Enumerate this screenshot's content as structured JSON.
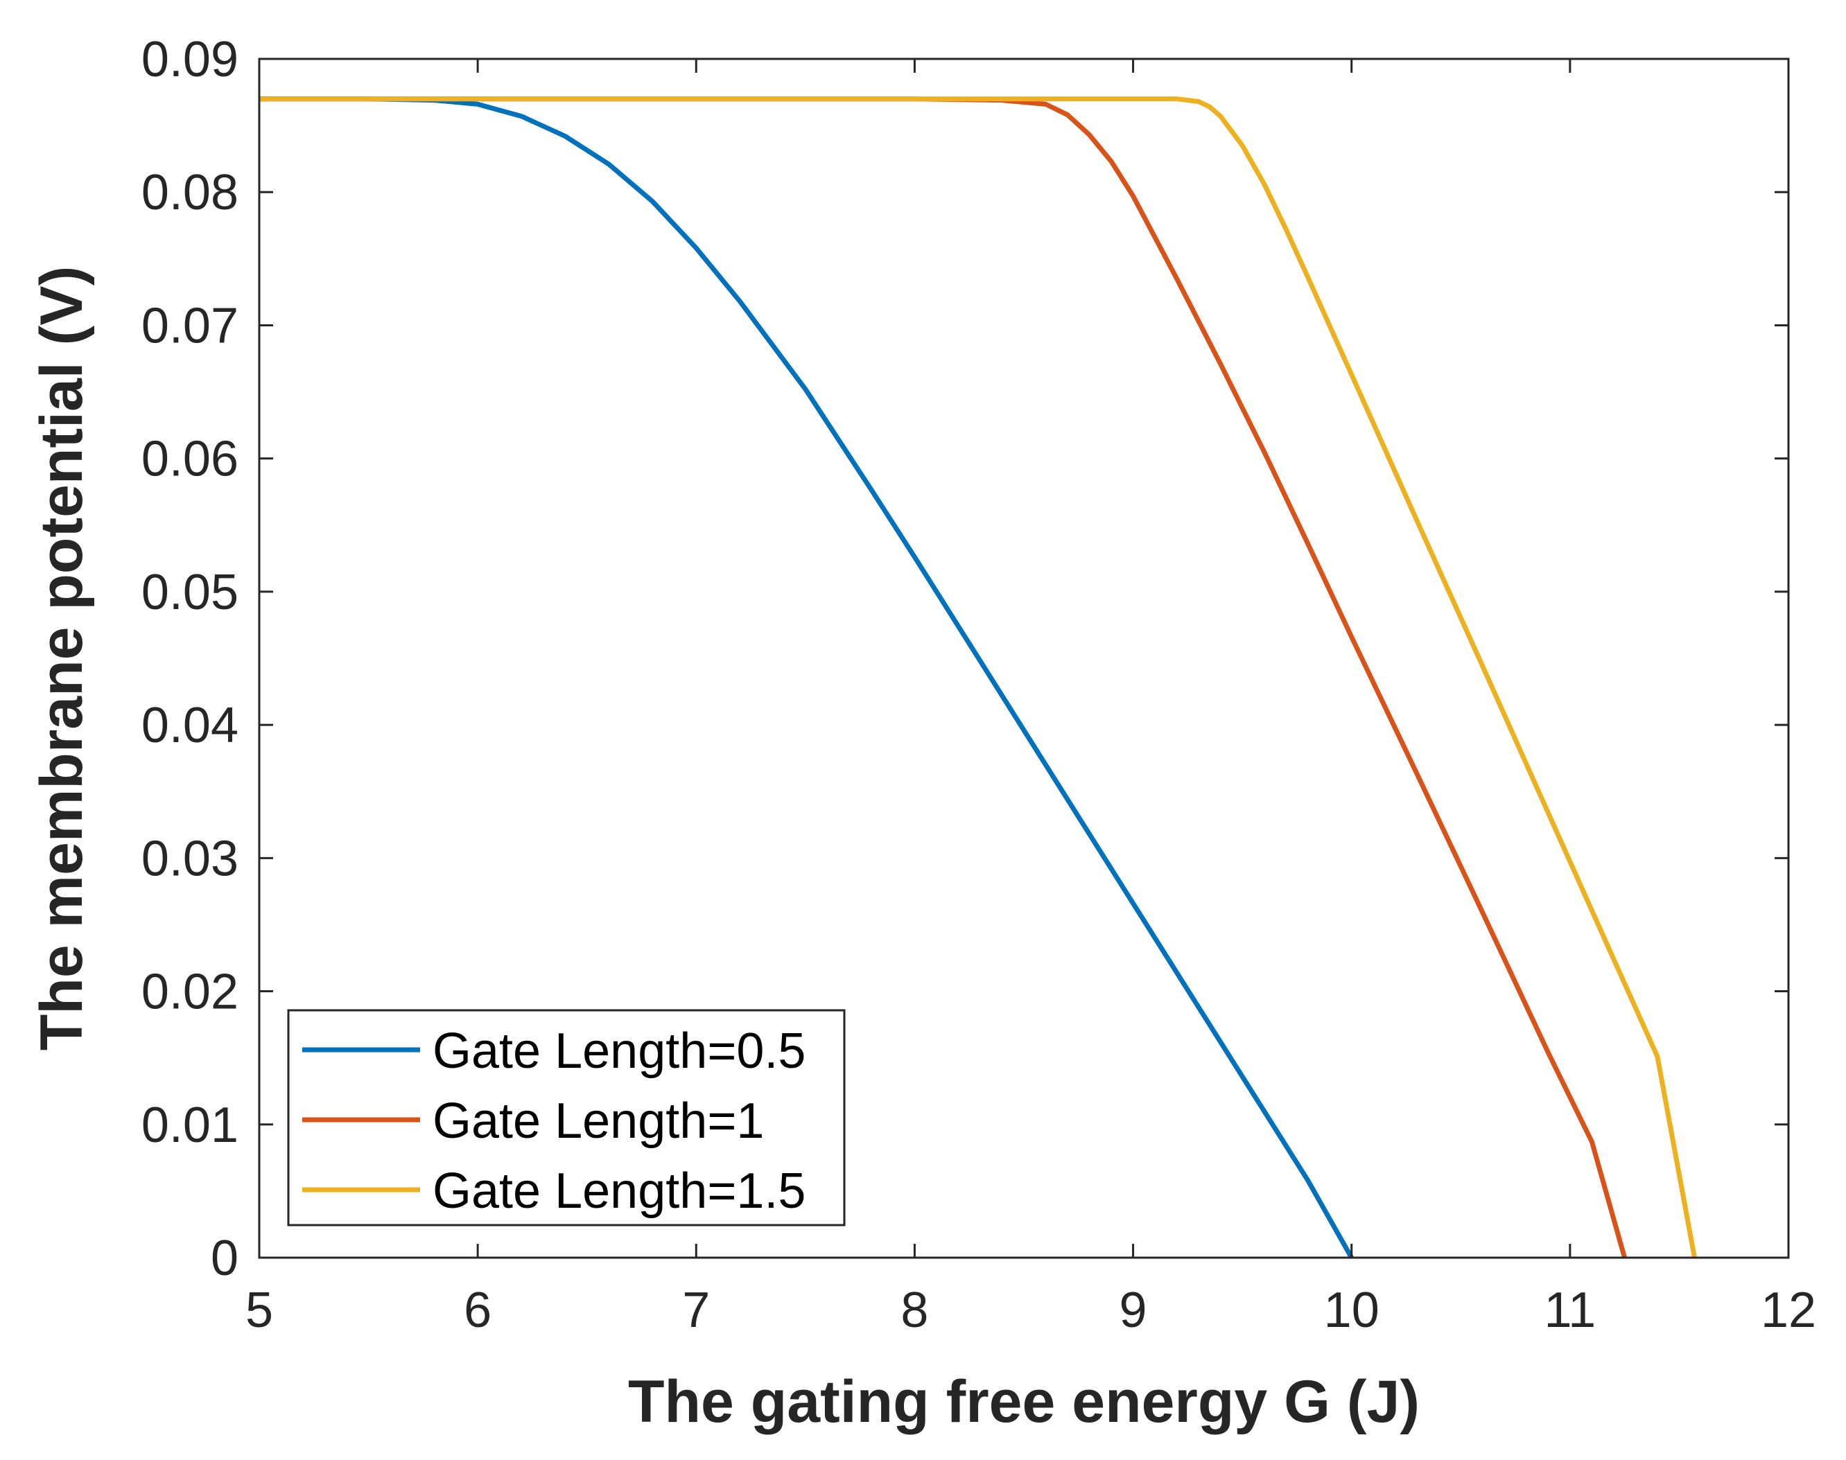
{
  "chart_data": {
    "type": "line",
    "title": "",
    "xlabel": "The gating free energy G (J)",
    "ylabel": "The membrane potential (V)",
    "xlim": [
      5,
      12
    ],
    "ylim": [
      0,
      0.09
    ],
    "xticks": [
      5,
      6,
      7,
      8,
      9,
      10,
      11,
      12
    ],
    "xtick_labels": [
      "5",
      "6",
      "7",
      "8",
      "9",
      "10",
      "11",
      "12"
    ],
    "yticks": [
      0,
      0.01,
      0.02,
      0.03,
      0.04,
      0.05,
      0.06,
      0.07,
      0.08,
      0.09
    ],
    "ytick_labels": [
      "0",
      "0.01",
      "0.02",
      "0.03",
      "0.04",
      "0.05",
      "0.06",
      "0.07",
      "0.08",
      "0.09"
    ],
    "grid": false,
    "legend_position": "bottom-left",
    "series": [
      {
        "name": "Gate Length=0.5",
        "color": "#0072BD",
        "x": [
          5.0,
          5.5,
          5.8,
          6.0,
          6.2,
          6.4,
          6.6,
          6.8,
          7.0,
          7.2,
          7.5,
          7.8,
          8.0,
          8.3,
          8.6,
          9.0,
          9.3,
          9.6,
          9.8,
          10.0
        ],
        "y": [
          0.087,
          0.087,
          0.0869,
          0.0866,
          0.0857,
          0.0842,
          0.0821,
          0.0793,
          0.0758,
          0.0718,
          0.0652,
          0.0577,
          0.0526,
          0.0448,
          0.037,
          0.0266,
          0.0188,
          0.011,
          0.0058,
          0.0
        ]
      },
      {
        "name": "Gate Length=1",
        "color": "#D95319",
        "x": [
          5.0,
          6.0,
          7.0,
          8.0,
          8.4,
          8.6,
          8.7,
          8.8,
          8.9,
          9.0,
          9.2,
          9.4,
          9.6,
          9.8,
          10.0,
          10.3,
          10.6,
          10.9,
          11.1,
          11.25
        ],
        "y": [
          0.087,
          0.087,
          0.087,
          0.087,
          0.0869,
          0.0866,
          0.0858,
          0.0843,
          0.0823,
          0.0797,
          0.0735,
          0.0671,
          0.0605,
          0.0536,
          0.0466,
          0.0363,
          0.0259,
          0.0154,
          0.0087,
          0.0
        ]
      },
      {
        "name": "Gate Length=1.5",
        "color": "#EDB120",
        "x": [
          5.0,
          6.0,
          7.0,
          8.0,
          9.0,
          9.2,
          9.3,
          9.35,
          9.4,
          9.5,
          9.6,
          9.7,
          9.8,
          10.0,
          10.3,
          10.6,
          10.9,
          11.2,
          11.4,
          11.57
        ],
        "y": [
          0.087,
          0.087,
          0.087,
          0.087,
          0.087,
          0.087,
          0.0868,
          0.0864,
          0.0857,
          0.0835,
          0.0806,
          0.0772,
          0.0736,
          0.0663,
          0.0553,
          0.0444,
          0.0334,
          0.0224,
          0.0151,
          0.0
        ]
      }
    ]
  }
}
